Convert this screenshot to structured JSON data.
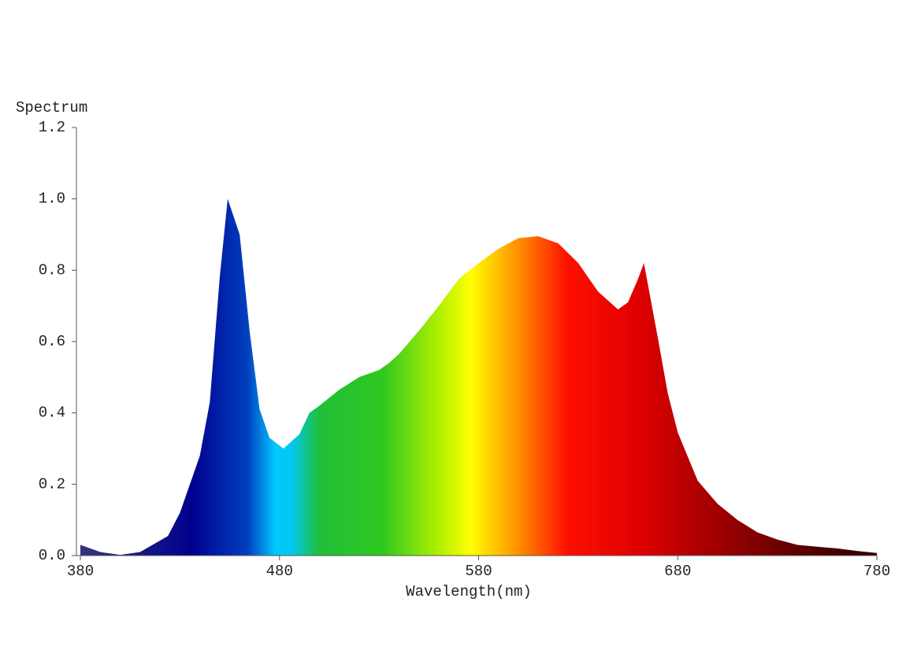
{
  "chart_data": {
    "type": "area",
    "ylabel": "Spectrum",
    "xlabel": "Wavelength(nm)",
    "x": [
      380,
      390,
      400,
      410,
      424,
      430,
      440,
      445,
      450,
      454,
      460,
      465,
      470,
      475,
      482,
      490,
      495,
      500,
      510,
      520,
      530,
      535,
      540,
      550,
      560,
      570,
      580,
      590,
      600,
      610,
      620,
      630,
      640,
      650,
      655,
      660,
      663,
      670,
      675,
      680,
      690,
      700,
      710,
      720,
      730,
      740,
      750,
      760,
      770,
      780
    ],
    "values": [
      0.03,
      0.01,
      0.002,
      0.01,
      0.055,
      0.12,
      0.28,
      0.43,
      0.78,
      1.0,
      0.9,
      0.63,
      0.41,
      0.33,
      0.3,
      0.34,
      0.4,
      0.42,
      0.465,
      0.5,
      0.52,
      0.54,
      0.565,
      0.63,
      0.7,
      0.775,
      0.82,
      0.86,
      0.89,
      0.895,
      0.875,
      0.82,
      0.74,
      0.69,
      0.71,
      0.775,
      0.82,
      0.61,
      0.455,
      0.345,
      0.21,
      0.145,
      0.1,
      0.065,
      0.045,
      0.03,
      0.025,
      0.02,
      0.013,
      0.007
    ],
    "xlim": [
      380,
      780
    ],
    "xticks": [
      380,
      480,
      580,
      680,
      780
    ],
    "ylim": [
      0,
      1.2
    ],
    "yticks": [
      {
        "value": 0,
        "label": "0.0"
      },
      {
        "value": 0.2,
        "label": "0.2"
      },
      {
        "value": 0.4,
        "label": "0.4"
      },
      {
        "value": 0.6,
        "label": "0.6"
      },
      {
        "value": 0.8,
        "label": "0.8"
      },
      {
        "value": 1.0,
        "label": "1.0"
      },
      {
        "value": 1.2,
        "label": "1.2"
      }
    ]
  }
}
